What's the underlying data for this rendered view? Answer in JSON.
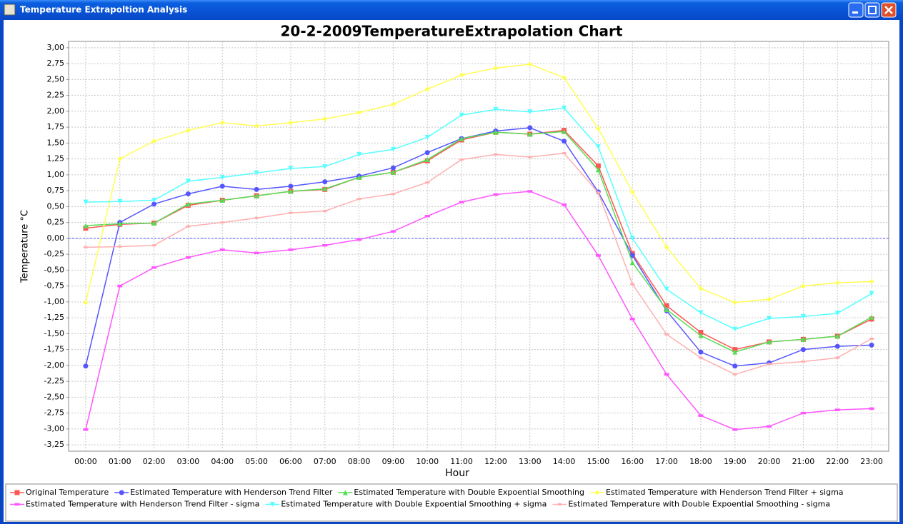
{
  "window": {
    "title": "Temperature Extrapoltion Analysis"
  },
  "chart_data": {
    "type": "line",
    "title": "20-2-2009TemperatureExtrapolation Chart",
    "x_label": "Hour",
    "y_label": "Temperature °C",
    "categories": [
      "00:00",
      "01:00",
      "02:00",
      "03:00",
      "04:00",
      "05:00",
      "06:00",
      "07:00",
      "08:00",
      "09:00",
      "10:00",
      "11:00",
      "12:00",
      "13:00",
      "14:00",
      "15:00",
      "16:00",
      "17:00",
      "18:00",
      "19:00",
      "20:00",
      "21:00",
      "22:00",
      "23:00"
    ],
    "ylim": [
      -3.35,
      3.1
    ],
    "yticks": [
      {
        "value": 3,
        "label": "3,00"
      },
      {
        "value": 2.75,
        "label": "2,75"
      },
      {
        "value": 2.5,
        "label": "2,50"
      },
      {
        "value": 2.25,
        "label": "2,25"
      },
      {
        "value": 2,
        "label": "2,00"
      },
      {
        "value": 1.75,
        "label": "1,75"
      },
      {
        "value": 1.5,
        "label": "1,50"
      },
      {
        "value": 1.25,
        "label": "1,25"
      },
      {
        "value": 1,
        "label": "1,00"
      },
      {
        "value": 0.75,
        "label": "0,75"
      },
      {
        "value": 0.5,
        "label": "0,50"
      },
      {
        "value": 0.25,
        "label": "0,25"
      },
      {
        "value": 0,
        "label": "0,00"
      },
      {
        "value": -0.25,
        "label": "-0,25"
      },
      {
        "value": -0.5,
        "label": "-0,50"
      },
      {
        "value": -0.75,
        "label": "-0,75"
      },
      {
        "value": -1,
        "label": "-1,00"
      },
      {
        "value": -1.25,
        "label": "-1,25"
      },
      {
        "value": -1.5,
        "label": "-1,50"
      },
      {
        "value": -1.75,
        "label": "-1,75"
      },
      {
        "value": -2,
        "label": "-2,00"
      },
      {
        "value": -2.25,
        "label": "-2,25"
      },
      {
        "value": -2.5,
        "label": "-2,50"
      },
      {
        "value": -2.75,
        "label": "-2,75"
      },
      {
        "value": -3,
        "label": "-3,00"
      },
      {
        "value": -3.25,
        "label": "-3,25"
      }
    ],
    "grid": true,
    "zero_line": true,
    "legend": "bottom",
    "series": [
      {
        "name": "Original Temperature",
        "color": "#ff5555",
        "marker": "square",
        "values": [
          0.16,
          0.22,
          0.24,
          0.52,
          0.6,
          0.67,
          0.74,
          0.77,
          0.96,
          1.04,
          1.22,
          1.55,
          1.67,
          1.64,
          1.7,
          1.14,
          -0.24,
          -1.06,
          -1.48,
          -1.75,
          -1.63,
          -1.59,
          -1.54,
          -1.27
        ]
      },
      {
        "name": "Estimated Temperature with Henderson Trend Filter",
        "color": "#5555ff",
        "marker": "circle",
        "values": [
          -2.01,
          0.25,
          0.54,
          0.7,
          0.82,
          0.77,
          0.82,
          0.89,
          0.98,
          1.11,
          1.35,
          1.57,
          1.69,
          1.74,
          1.53,
          0.73,
          -0.27,
          -1.14,
          -1.79,
          -2.01,
          -1.96,
          -1.75,
          -1.7,
          -1.68
        ]
      },
      {
        "name": "Estimated Temperature with Double Expoential Smoothing",
        "color": "#55dd55",
        "marker": "triangle-up",
        "values": [
          0.2,
          0.23,
          0.24,
          0.54,
          0.6,
          0.67,
          0.74,
          0.78,
          0.96,
          1.04,
          1.24,
          1.57,
          1.67,
          1.64,
          1.68,
          1.08,
          -0.38,
          -1.12,
          -1.53,
          -1.79,
          -1.63,
          -1.59,
          -1.54,
          -1.24
        ]
      },
      {
        "name": "Estimated Temperature with Henderson Trend Filter + sigma",
        "color": "#ffff55",
        "marker": "diamond",
        "values": [
          -1.01,
          1.25,
          1.53,
          1.7,
          1.82,
          1.77,
          1.82,
          1.88,
          1.98,
          2.11,
          2.35,
          2.57,
          2.68,
          2.74,
          2.53,
          1.73,
          0.73,
          -0.14,
          -0.79,
          -1.01,
          -0.96,
          -0.75,
          -0.7,
          -0.68
        ]
      },
      {
        "name": "Estimated Temperature with Henderson Trend Filter - sigma",
        "color": "#ff55ff",
        "marker": "rect",
        "values": [
          -3.01,
          -0.75,
          -0.46,
          -0.3,
          -0.18,
          -0.23,
          -0.18,
          -0.11,
          -0.02,
          0.11,
          0.35,
          0.57,
          0.69,
          0.74,
          0.53,
          -0.27,
          -1.27,
          -2.14,
          -2.79,
          -3.01,
          -2.96,
          -2.75,
          -2.7,
          -2.68
        ]
      },
      {
        "name": "Estimated Temperature with Double Expoential Smoothing + sigma",
        "color": "#55ffff",
        "marker": "triangle-down",
        "values": [
          0.57,
          0.58,
          0.6,
          0.9,
          0.96,
          1.03,
          1.1,
          1.13,
          1.32,
          1.4,
          1.59,
          1.94,
          2.03,
          1.99,
          2.05,
          1.44,
          0,
          -0.8,
          -1.17,
          -1.43,
          -1.26,
          -1.23,
          -1.18,
          -0.87
        ]
      },
      {
        "name": "Estimated Temperature with Double Expoential Smoothing - sigma",
        "color": "#ffafaf",
        "marker": "ellipse",
        "values": [
          -0.14,
          -0.13,
          -0.11,
          0.19,
          0.25,
          0.32,
          0.4,
          0.43,
          0.62,
          0.7,
          0.88,
          1.24,
          1.32,
          1.28,
          1.34,
          0.72,
          -0.72,
          -1.51,
          -1.88,
          -2.14,
          -1.98,
          -1.94,
          -1.88,
          -1.58
        ]
      }
    ]
  }
}
